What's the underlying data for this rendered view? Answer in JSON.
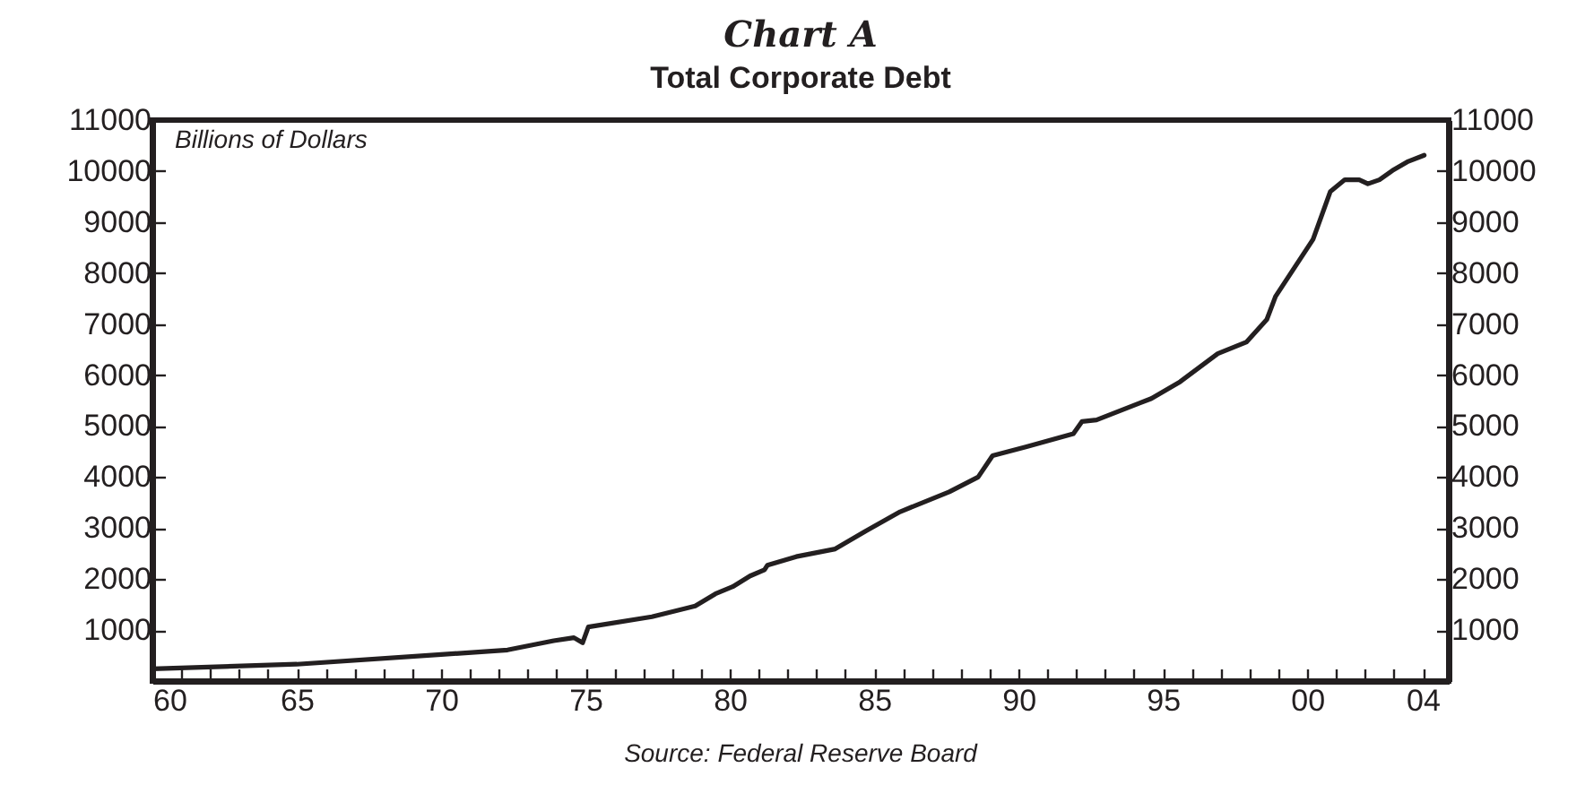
{
  "chart_data": {
    "type": "line",
    "title": "Chart A",
    "subtitle": "Total Corporate Debt",
    "ylabel": "Billions of Dollars",
    "annotations": [
      "Source: Federal Reserve Board"
    ],
    "x": [
      1960,
      1965,
      1970,
      1972.3,
      1973.9,
      1974.6,
      1974.9,
      1975.1,
      1977.3,
      1978.8,
      1979.5,
      1980.1,
      1980.7,
      1981.2,
      1981.3,
      1982.3,
      1983.65,
      1984.7,
      1985.9,
      1987.6,
      1988.6,
      1989.1,
      1990.25,
      1991.9,
      1992.2,
      1992.7,
      1994.6,
      1995.6,
      1996.9,
      1997.9,
      1998.6,
      1998.9,
      2000.2,
      2000.8,
      2001.3,
      2001.8,
      2002.1,
      2002.5,
      2002.95,
      2003.5,
      2004.05
    ],
    "series": [
      {
        "color": "#231f20",
        "values": [
          240,
          330,
          520,
          610,
          790,
          850,
          750,
          1060,
          1260,
          1470,
          1710,
          1850,
          2060,
          2180,
          2270,
          2440,
          2590,
          2940,
          3320,
          3710,
          4000,
          4420,
          4590,
          4850,
          5090,
          5120,
          5540,
          5870,
          6420,
          6650,
          7090,
          7540,
          8660,
          9600,
          9830,
          9830,
          9750,
          9830,
          10010,
          10190,
          10310
        ]
      }
    ],
    "xlim": [
      1960,
      2004.9
    ],
    "xticks": [
      {
        "value": 1960,
        "label": "60"
      },
      {
        "value": 1961,
        "label": null
      },
      {
        "value": 1962,
        "label": null
      },
      {
        "value": 1963,
        "label": null
      },
      {
        "value": 1964,
        "label": null
      },
      {
        "value": 1965,
        "label": "65"
      },
      {
        "value": 1966,
        "label": null
      },
      {
        "value": 1967,
        "label": null
      },
      {
        "value": 1968,
        "label": null
      },
      {
        "value": 1969,
        "label": null
      },
      {
        "value": 1970,
        "label": "70"
      },
      {
        "value": 1971,
        "label": null
      },
      {
        "value": 1972,
        "label": null
      },
      {
        "value": 1973,
        "label": null
      },
      {
        "value": 1974,
        "label": null
      },
      {
        "value": 1975,
        "label": "75"
      },
      {
        "value": 1976,
        "label": null
      },
      {
        "value": 1977,
        "label": null
      },
      {
        "value": 1978,
        "label": null
      },
      {
        "value": 1979,
        "label": null
      },
      {
        "value": 1980,
        "label": "80"
      },
      {
        "value": 1981,
        "label": null
      },
      {
        "value": 1982,
        "label": null
      },
      {
        "value": 1983,
        "label": null
      },
      {
        "value": 1984,
        "label": null
      },
      {
        "value": 1985,
        "label": "85"
      },
      {
        "value": 1986,
        "label": null
      },
      {
        "value": 1987,
        "label": null
      },
      {
        "value": 1988,
        "label": null
      },
      {
        "value": 1989,
        "label": null
      },
      {
        "value": 1990,
        "label": "90"
      },
      {
        "value": 1991,
        "label": null
      },
      {
        "value": 1992,
        "label": null
      },
      {
        "value": 1993,
        "label": null
      },
      {
        "value": 1994,
        "label": null
      },
      {
        "value": 1995,
        "label": "95"
      },
      {
        "value": 1996,
        "label": null
      },
      {
        "value": 1997,
        "label": null
      },
      {
        "value": 1998,
        "label": null
      },
      {
        "value": 1999,
        "label": null
      },
      {
        "value": 2000,
        "label": "00"
      },
      {
        "value": 2001,
        "label": null
      },
      {
        "value": 2002,
        "label": null
      },
      {
        "value": 2003,
        "label": null
      },
      {
        "value": 2004,
        "label": "04"
      }
    ],
    "ylim": [
      0,
      11000
    ],
    "yticks": [
      1000,
      2000,
      3000,
      4000,
      5000,
      6000,
      7000,
      8000,
      9000,
      10000,
      11000
    ],
    "y2lim": [
      0,
      11000
    ],
    "y2ticks": [
      1000,
      2000,
      3000,
      4000,
      5000,
      6000,
      7000,
      8000,
      9000,
      10000,
      11000
    ],
    "grid": false,
    "legend": false,
    "marker": "none",
    "line_style": "solid"
  }
}
